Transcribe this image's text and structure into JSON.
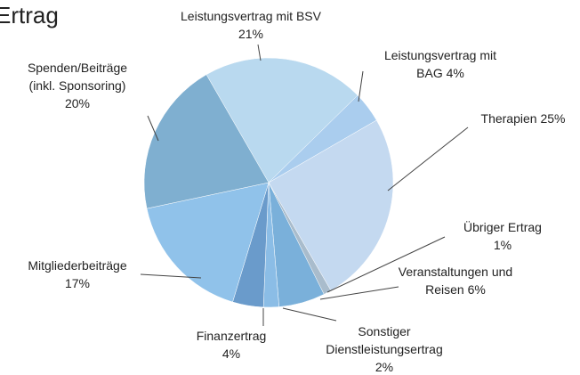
{
  "chart_data": {
    "type": "pie",
    "title": "Ertrag",
    "categories": [
      "Leistungsvertrag mit BSV",
      "Leistungsvertrag mit BAG",
      "Therapien",
      "Übriger Ertrag",
      "Veranstaltungen und Reisen",
      "Sonstiger Dienstleistungsertrag",
      "Finanzertrag",
      "Mitgliederbeiträge",
      "Spenden/Beiträge (inkl. Sponsoring)"
    ],
    "values": [
      21,
      4,
      25,
      1,
      6,
      2,
      4,
      17,
      20
    ],
    "value_labels": [
      "21%",
      "4%",
      "25%",
      "1%",
      "6%",
      "2%",
      "4%",
      "17%",
      "20%"
    ],
    "colors": [
      "#b9d9ef",
      "#aacdee",
      "#c4d9f0",
      "#a9bccc",
      "#7ab0da",
      "#8bbde6",
      "#6a9bcb",
      "#90c2ea",
      "#7fafd0"
    ]
  }
}
